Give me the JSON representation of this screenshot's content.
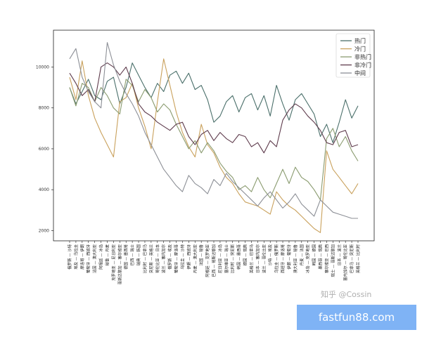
{
  "chart_data": {
    "type": "line",
    "title": "",
    "xlabel": "",
    "ylabel": "",
    "ylim": [
      1500,
      11800
    ],
    "yticks": [
      2000,
      4000,
      6000,
      8000,
      10000
    ],
    "legend_position": "top-right",
    "grid": false,
    "categories": [
      "俄罗斯 — 沙特",
      "埃及 — 乌拉圭",
      "摩洛哥 — 伊朗",
      "葡萄牙 — 西班牙",
      "法国 — 澳大利亚",
      "阿根廷 — 冰岛",
      "秘鲁 — 丹麦",
      "克罗地亚 — 尼日利亚",
      "哥斯达黎加 — 塞尔维亚",
      "德国 — 墨西哥",
      "巴西 — 瑞士",
      "瑞典 — 韩国",
      "比利时 — 巴拿马",
      "突尼斯 — 英格兰",
      "哥伦比亚 — 日本",
      "波兰 — 塞内加尔",
      "俄罗斯 — 埃及",
      "葡萄牙 — 摩洛哥",
      "乌拉圭 — 沙特",
      "伊朗 — 西班牙",
      "丹麦 — 澳大利亚",
      "法国 — 秘鲁",
      "阿根廷 — 克罗地亚",
      "巴西 — 哥斯达黎加",
      "尼日利亚 — 冰岛",
      "塞尔维亚 — 瑞士",
      "比利时 — 突尼斯",
      "韩国 — 墨西哥",
      "德国 — 瑞典",
      "英格兰 — 巴拿马",
      "日本 — 塞内加尔",
      "波兰 — 哥伦比亚",
      "沙特 — 埃及",
      "乌拉圭 — 俄罗斯",
      "西班牙 — 摩洛哥",
      "伊朗 — 葡萄牙",
      "澳大利亚 — 秘鲁",
      "丹麦 — 法国",
      "冰岛 — 克罗地亚",
      "韩国 — 德国",
      "墨西哥 — 瑞典",
      "塞尔维亚 — 巴西",
      "瑞士 — 哥斯达黎加",
      "日本 — 波兰",
      "塞内加尔 — 哥伦比亚",
      "巴拿马 — 突尼斯",
      "英格兰 — 比利时"
    ],
    "series": [
      {
        "name": "热门",
        "color": "#4a6f6a",
        "values": [
          9000,
          8200,
          8800,
          9400,
          8600,
          8400,
          9300,
          9500,
          8200,
          9000,
          10200,
          9600,
          9000,
          8500,
          9200,
          8800,
          9600,
          9800,
          9200,
          9700,
          8900,
          9100,
          8400,
          7300,
          7600,
          8300,
          8600,
          7800,
          8500,
          8700,
          7900,
          8600,
          7600,
          9100,
          8200,
          7400,
          8400,
          8700,
          8200,
          7700,
          6600,
          7200,
          6300,
          7300,
          8400,
          7500,
          8100
        ]
      },
      {
        "name": "冷门",
        "color": "#c9a15c",
        "values": [
          9500,
          8400,
          10300,
          8600,
          7500,
          6800,
          6200,
          5600,
          8300,
          8500,
          9200,
          8000,
          7100,
          6000,
          8300,
          10400,
          9100,
          7800,
          6800,
          6100,
          5600,
          7200,
          6200,
          5800,
          5100,
          4600,
          4300,
          3800,
          3400,
          3300,
          3200,
          3000,
          2800,
          3900,
          3500,
          3200,
          3000,
          2700,
          2400,
          2100,
          1900,
          5900,
          5000,
          4600,
          4200,
          3800,
          4300
        ]
      },
      {
        "name": "非热门",
        "color": "#8a9b6f",
        "values": [
          9000,
          8100,
          9200,
          9000,
          8300,
          9000,
          8600,
          8000,
          7700,
          9400,
          9100,
          8300,
          8900,
          8500,
          7800,
          8200,
          7900,
          7200,
          6600,
          6000,
          6400,
          5800,
          6300,
          5900,
          5300,
          4900,
          4600,
          4000,
          4200,
          3900,
          4600,
          4000,
          3600,
          4300,
          5000,
          4300,
          5100,
          4600,
          4400,
          4000,
          3500,
          6500,
          7000,
          6100,
          6600,
          5900,
          5400
        ]
      },
      {
        "name": "非冷门",
        "color": "#5e3b4c",
        "values": [
          9700,
          9200,
          8600,
          8900,
          8300,
          10000,
          10200,
          10000,
          9600,
          10000,
          9200,
          8200,
          7800,
          7600,
          7300,
          7100,
          6900,
          7200,
          7300,
          6600,
          6200,
          6700,
          6900,
          6400,
          6800,
          6500,
          6300,
          6700,
          6600,
          6100,
          6300,
          5800,
          6400,
          6100,
          7400,
          7900,
          8200,
          8000,
          7600,
          7300,
          6900,
          6300,
          6200,
          6800,
          6900,
          6100,
          6200
        ]
      },
      {
        "name": "中间",
        "color": "#8c8f96",
        "values": [
          10400,
          10900,
          9500,
          8800,
          8300,
          8000,
          11200,
          10100,
          9300,
          8700,
          8200,
          7600,
          6800,
          6200,
          5600,
          5000,
          4600,
          4200,
          3900,
          4700,
          4300,
          4100,
          3800,
          4500,
          4200,
          4800,
          4400,
          4100,
          3800,
          3500,
          3200,
          3600,
          3900,
          3500,
          3100,
          3400,
          3800,
          3300,
          3000,
          2700,
          3500,
          3200,
          2900,
          2800,
          2700,
          2600,
          2600
        ]
      }
    ]
  },
  "watermark": "知乎 @Cossin",
  "site": "fastfun88.com"
}
